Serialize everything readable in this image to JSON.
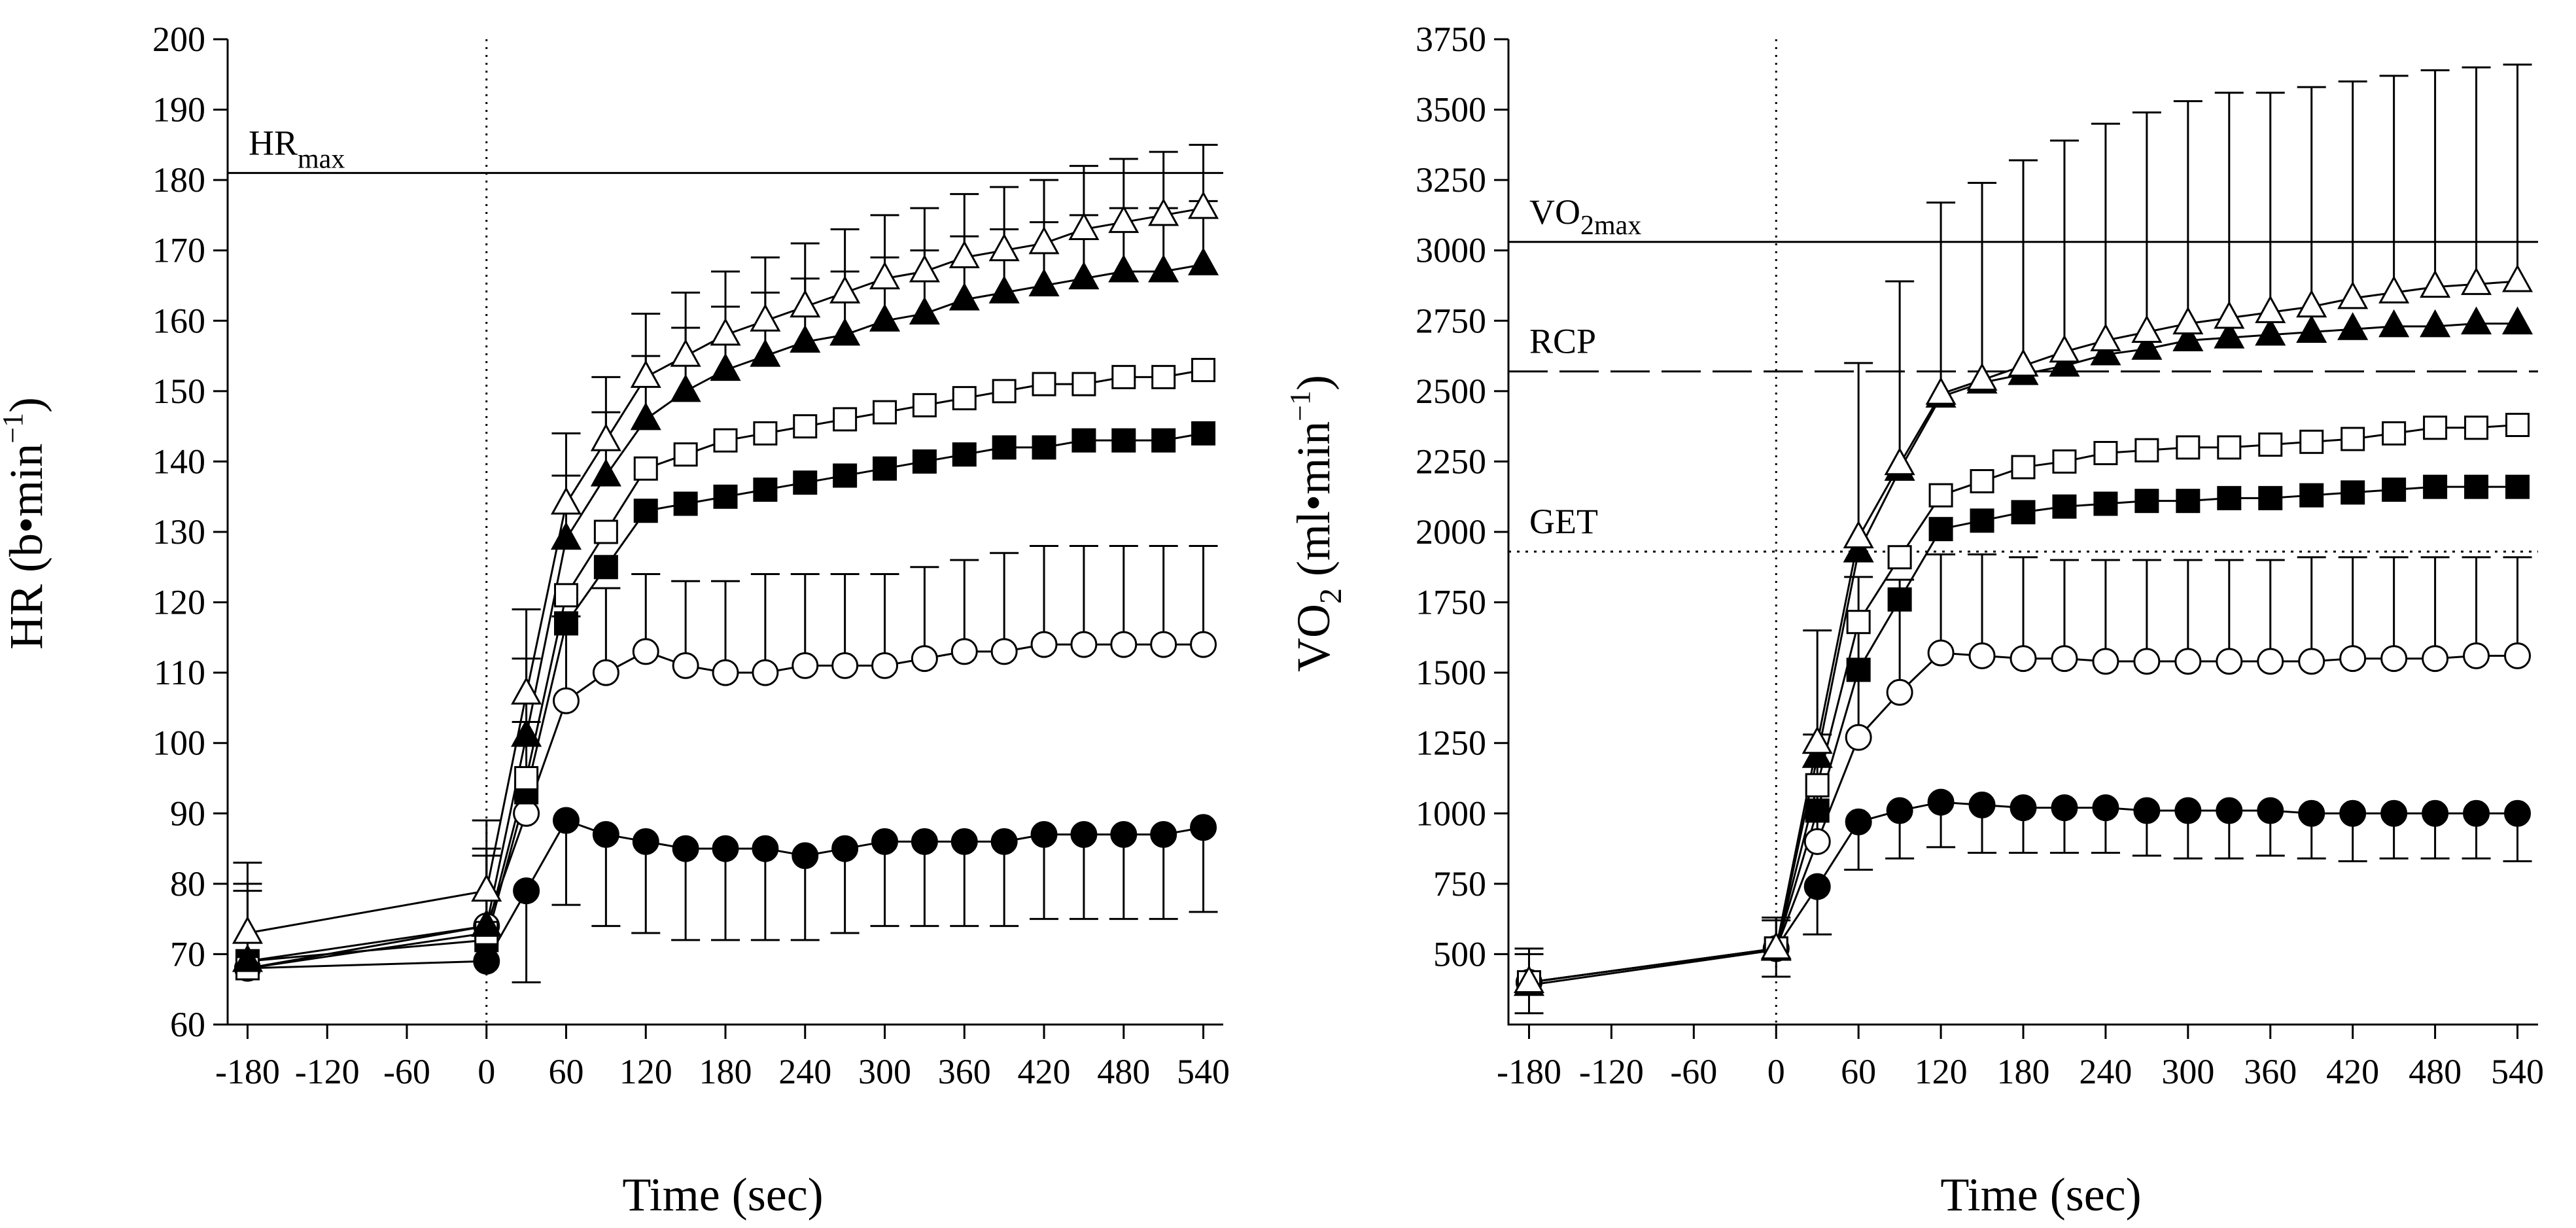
{
  "chart_data": [
    {
      "id": "hr",
      "type": "line",
      "xlabel": "Time (sec)",
      "ylabel": {
        "main": "HR (b•min",
        "sup": "−1",
        "close": ")"
      },
      "xlim": [
        -195,
        555
      ],
      "ylim": [
        60,
        200
      ],
      "xticks": [
        -180,
        -120,
        -60,
        0,
        60,
        120,
        180,
        240,
        300,
        360,
        420,
        480,
        540
      ],
      "xtick_labels": [
        "-180",
        "-120",
        "-60",
        "0",
        "60",
        "120",
        "180",
        "240",
        "300",
        "360",
        "420",
        "480",
        "540"
      ],
      "yticks": [
        60,
        70,
        80,
        90,
        100,
        110,
        120,
        130,
        140,
        150,
        160,
        170,
        180,
        190,
        200
      ],
      "ytick_labels": [
        "60",
        "70",
        "80",
        "90",
        "100",
        "110",
        "120",
        "130",
        "140",
        "150",
        "160",
        "170",
        "180",
        "190",
        "200"
      ],
      "x": [
        -180,
        0,
        30,
        60,
        90,
        120,
        150,
        180,
        210,
        240,
        270,
        300,
        330,
        360,
        390,
        420,
        450,
        480,
        510,
        540
      ],
      "start_marker_x": 0,
      "references": [
        {
          "name": "HRmax",
          "label_main": "HR",
          "label_sub": "max",
          "value": 181,
          "style": "solid",
          "x_start": -195
        }
      ],
      "series": [
        {
          "name": "Open triangle",
          "marker": "triangle",
          "fill": "open",
          "values": [
            73,
            79,
            107,
            134,
            143,
            152,
            155,
            158,
            160,
            162,
            164,
            166,
            167,
            169,
            170,
            171,
            173,
            174,
            175,
            176
          ],
          "err_up": [
            10,
            10,
            12,
            10,
            9,
            9,
            9,
            9,
            9,
            9,
            9,
            9,
            9,
            9,
            9,
            9,
            9,
            9,
            9,
            9
          ],
          "err_down": [
            0,
            0,
            0,
            0,
            0,
            0,
            0,
            0,
            0,
            0,
            0,
            0,
            0,
            0,
            0,
            0,
            0,
            0,
            0,
            0
          ]
        },
        {
          "name": "Filled triangle",
          "marker": "triangle",
          "fill": "filled",
          "values": [
            69,
            74,
            101,
            129,
            138,
            146,
            150,
            153,
            155,
            157,
            158,
            160,
            161,
            163,
            164,
            165,
            166,
            167,
            167,
            168
          ],
          "err_up": [
            10,
            10,
            11,
            9,
            9,
            9,
            9,
            9,
            9,
            9,
            9,
            9,
            9,
            9,
            9,
            9,
            9,
            9,
            9,
            9
          ],
          "err_down": [
            0,
            0,
            0,
            0,
            0,
            0,
            0,
            0,
            0,
            0,
            0,
            0,
            0,
            0,
            0,
            0,
            0,
            0,
            0,
            0
          ]
        },
        {
          "name": "Open square",
          "marker": "square",
          "fill": "open",
          "values": [
            68,
            73,
            95,
            121,
            130,
            139,
            141,
            143,
            144,
            145,
            146,
            147,
            148,
            149,
            150,
            151,
            151,
            152,
            152,
            153
          ],
          "err_up": [
            0,
            0,
            0,
            0,
            0,
            0,
            0,
            0,
            0,
            0,
            0,
            0,
            0,
            0,
            0,
            0,
            0,
            0,
            0,
            0
          ],
          "err_down": [
            0,
            0,
            0,
            0,
            0,
            0,
            0,
            0,
            0,
            0,
            0,
            0,
            0,
            0,
            0,
            0,
            0,
            0,
            0,
            0
          ]
        },
        {
          "name": "Filled square",
          "marker": "square",
          "fill": "filled",
          "values": [
            69,
            72,
            93,
            117,
            125,
            133,
            134,
            135,
            136,
            137,
            138,
            139,
            140,
            141,
            142,
            142,
            143,
            143,
            143,
            144
          ],
          "err_up": [
            0,
            0,
            0,
            0,
            0,
            0,
            0,
            0,
            0,
            0,
            0,
            0,
            0,
            0,
            0,
            0,
            0,
            0,
            0,
            0
          ],
          "err_down": [
            0,
            0,
            0,
            0,
            0,
            0,
            0,
            0,
            0,
            0,
            0,
            0,
            0,
            0,
            0,
            0,
            0,
            0,
            0,
            0
          ]
        },
        {
          "name": "Open circle",
          "marker": "circle",
          "fill": "open",
          "values": [
            68,
            74,
            90,
            106,
            110,
            113,
            111,
            110,
            110,
            111,
            111,
            111,
            112,
            113,
            113,
            114,
            114,
            114,
            114,
            114
          ],
          "err_up": [
            12,
            11,
            13,
            12,
            12,
            11,
            12,
            13,
            14,
            13,
            13,
            13,
            13,
            13,
            14,
            14,
            14,
            14,
            14,
            14
          ],
          "err_down": [
            0,
            0,
            0,
            0,
            0,
            0,
            0,
            0,
            0,
            0,
            0,
            0,
            0,
            0,
            0,
            0,
            0,
            0,
            0,
            0
          ]
        },
        {
          "name": "Filled circle",
          "marker": "circle",
          "fill": "filled",
          "values": [
            68,
            69,
            79,
            89,
            87,
            86,
            85,
            85,
            85,
            84,
            85,
            86,
            86,
            86,
            86,
            87,
            87,
            87,
            87,
            88
          ],
          "err_up": [
            0,
            0,
            0,
            0,
            0,
            0,
            0,
            0,
            0,
            0,
            0,
            0,
            0,
            0,
            0,
            0,
            0,
            0,
            0,
            0
          ],
          "err_down": [
            0,
            0,
            13,
            12,
            13,
            13,
            13,
            13,
            13,
            12,
            12,
            12,
            12,
            12,
            12,
            12,
            12,
            12,
            12,
            12
          ]
        }
      ]
    },
    {
      "id": "vo2",
      "type": "line",
      "xlabel": "Time (sec)",
      "ylabel": {
        "main": "VO",
        "sub": "2",
        "unit": " (ml•min",
        "sup": "−1",
        "close": ")"
      },
      "xlim": [
        -195,
        555
      ],
      "ylim": [
        250,
        3750
      ],
      "xticks": [
        -180,
        -120,
        -60,
        0,
        60,
        120,
        180,
        240,
        300,
        360,
        420,
        480,
        540
      ],
      "xtick_labels": [
        "-180",
        "-120",
        "-60",
        "0",
        "60",
        "120",
        "180",
        "240",
        "300",
        "360",
        "420",
        "480",
        "540"
      ],
      "yticks": [
        500,
        750,
        1000,
        1250,
        1500,
        1750,
        2000,
        2250,
        2500,
        2750,
        3000,
        3250,
        3500,
        3750
      ],
      "ytick_labels": [
        "500",
        "750",
        "1000",
        "1250",
        "1500",
        "1750",
        "2000",
        "2250",
        "2500",
        "2750",
        "3000",
        "3250",
        "3500",
        "3750"
      ],
      "x": [
        -180,
        0,
        30,
        60,
        90,
        120,
        150,
        180,
        210,
        240,
        270,
        300,
        330,
        360,
        390,
        420,
        450,
        480,
        510,
        540
      ],
      "start_marker_x": 0,
      "references": [
        {
          "name": "VO2max",
          "label_main": "VO",
          "label_sub": "2max",
          "value": 3030,
          "style": "solid",
          "x_start": -195
        },
        {
          "name": "RCP",
          "label_main": "RCP",
          "label_sub": "",
          "value": 2570,
          "style": "dashed",
          "x_start": -195
        },
        {
          "name": "GET",
          "label_main": "GET",
          "label_sub": "",
          "value": 1930,
          "style": "dotted",
          "x_start": -195
        }
      ],
      "series": [
        {
          "name": "Open triangle",
          "marker": "triangle",
          "fill": "open",
          "values": [
            400,
            520,
            1250,
            1980,
            2240,
            2490,
            2540,
            2590,
            2640,
            2680,
            2710,
            2740,
            2760,
            2780,
            2800,
            2830,
            2850,
            2870,
            2880,
            2890
          ],
          "err_up": [
            100,
            100,
            400,
            620,
            650,
            680,
            700,
            730,
            750,
            770,
            780,
            790,
            800,
            780,
            780,
            770,
            770,
            770,
            770,
            770
          ],
          "err_down": [
            0,
            0,
            0,
            0,
            0,
            0,
            0,
            0,
            0,
            0,
            0,
            0,
            0,
            0,
            0,
            0,
            0,
            0,
            0,
            0
          ]
        },
        {
          "name": "Filled triangle",
          "marker": "triangle",
          "fill": "filled",
          "values": [
            390,
            515,
            1200,
            1930,
            2220,
            2480,
            2530,
            2560,
            2590,
            2630,
            2650,
            2680,
            2690,
            2700,
            2710,
            2720,
            2730,
            2730,
            2740,
            2740
          ],
          "err_up": [
            0,
            0,
            0,
            0,
            0,
            0,
            0,
            0,
            0,
            0,
            0,
            0,
            0,
            0,
            0,
            0,
            0,
            0,
            0,
            0
          ],
          "err_down": [
            0,
            0,
            0,
            0,
            0,
            0,
            0,
            0,
            0,
            0,
            0,
            0,
            0,
            0,
            0,
            0,
            0,
            0,
            0,
            0
          ]
        },
        {
          "name": "Open square",
          "marker": "square",
          "fill": "open",
          "values": [
            400,
            520,
            1100,
            1680,
            1910,
            2130,
            2180,
            2230,
            2250,
            2280,
            2290,
            2300,
            2300,
            2310,
            2320,
            2330,
            2350,
            2370,
            2370,
            2380
          ],
          "err_up": [
            0,
            0,
            0,
            0,
            0,
            0,
            0,
            0,
            0,
            0,
            0,
            0,
            0,
            0,
            0,
            0,
            0,
            0,
            0,
            0
          ],
          "err_down": [
            0,
            0,
            0,
            0,
            0,
            0,
            0,
            0,
            0,
            0,
            0,
            0,
            0,
            0,
            0,
            0,
            0,
            0,
            0,
            0
          ]
        },
        {
          "name": "Filled square",
          "marker": "square",
          "fill": "filled",
          "values": [
            400,
            520,
            1010,
            1510,
            1760,
            2010,
            2040,
            2070,
            2090,
            2100,
            2110,
            2110,
            2120,
            2120,
            2130,
            2140,
            2150,
            2160,
            2160,
            2160
          ],
          "err_up": [
            0,
            0,
            0,
            0,
            0,
            0,
            0,
            0,
            0,
            0,
            0,
            0,
            0,
            0,
            0,
            0,
            0,
            0,
            0,
            0
          ],
          "err_down": [
            0,
            0,
            0,
            0,
            0,
            0,
            0,
            0,
            0,
            0,
            0,
            0,
            0,
            0,
            0,
            0,
            0,
            0,
            0,
            0
          ]
        },
        {
          "name": "Open circle",
          "marker": "circle",
          "fill": "open",
          "values": [
            400,
            520,
            900,
            1270,
            1430,
            1570,
            1560,
            1550,
            1550,
            1540,
            1540,
            1540,
            1540,
            1540,
            1540,
            1550,
            1550,
            1550,
            1560,
            1560
          ],
          "err_up": [
            120,
            110,
            380,
            570,
            400,
            350,
            360,
            360,
            350,
            360,
            360,
            360,
            360,
            360,
            370,
            360,
            360,
            360,
            350,
            350
          ],
          "err_down": [
            0,
            0,
            0,
            0,
            0,
            0,
            0,
            0,
            0,
            0,
            0,
            0,
            0,
            0,
            0,
            0,
            0,
            0,
            0,
            0
          ]
        },
        {
          "name": "Filled circle",
          "marker": "circle",
          "fill": "filled",
          "values": [
            400,
            520,
            740,
            970,
            1010,
            1040,
            1030,
            1020,
            1020,
            1020,
            1010,
            1010,
            1010,
            1010,
            1000,
            1000,
            1000,
            1000,
            1000,
            1000
          ],
          "err_up": [
            0,
            0,
            0,
            0,
            0,
            0,
            0,
            0,
            0,
            0,
            0,
            0,
            0,
            0,
            0,
            0,
            0,
            0,
            0,
            0
          ],
          "err_down": [
            110,
            100,
            170,
            170,
            170,
            160,
            170,
            160,
            160,
            160,
            160,
            170,
            170,
            160,
            160,
            170,
            160,
            160,
            160,
            170
          ]
        }
      ]
    }
  ]
}
